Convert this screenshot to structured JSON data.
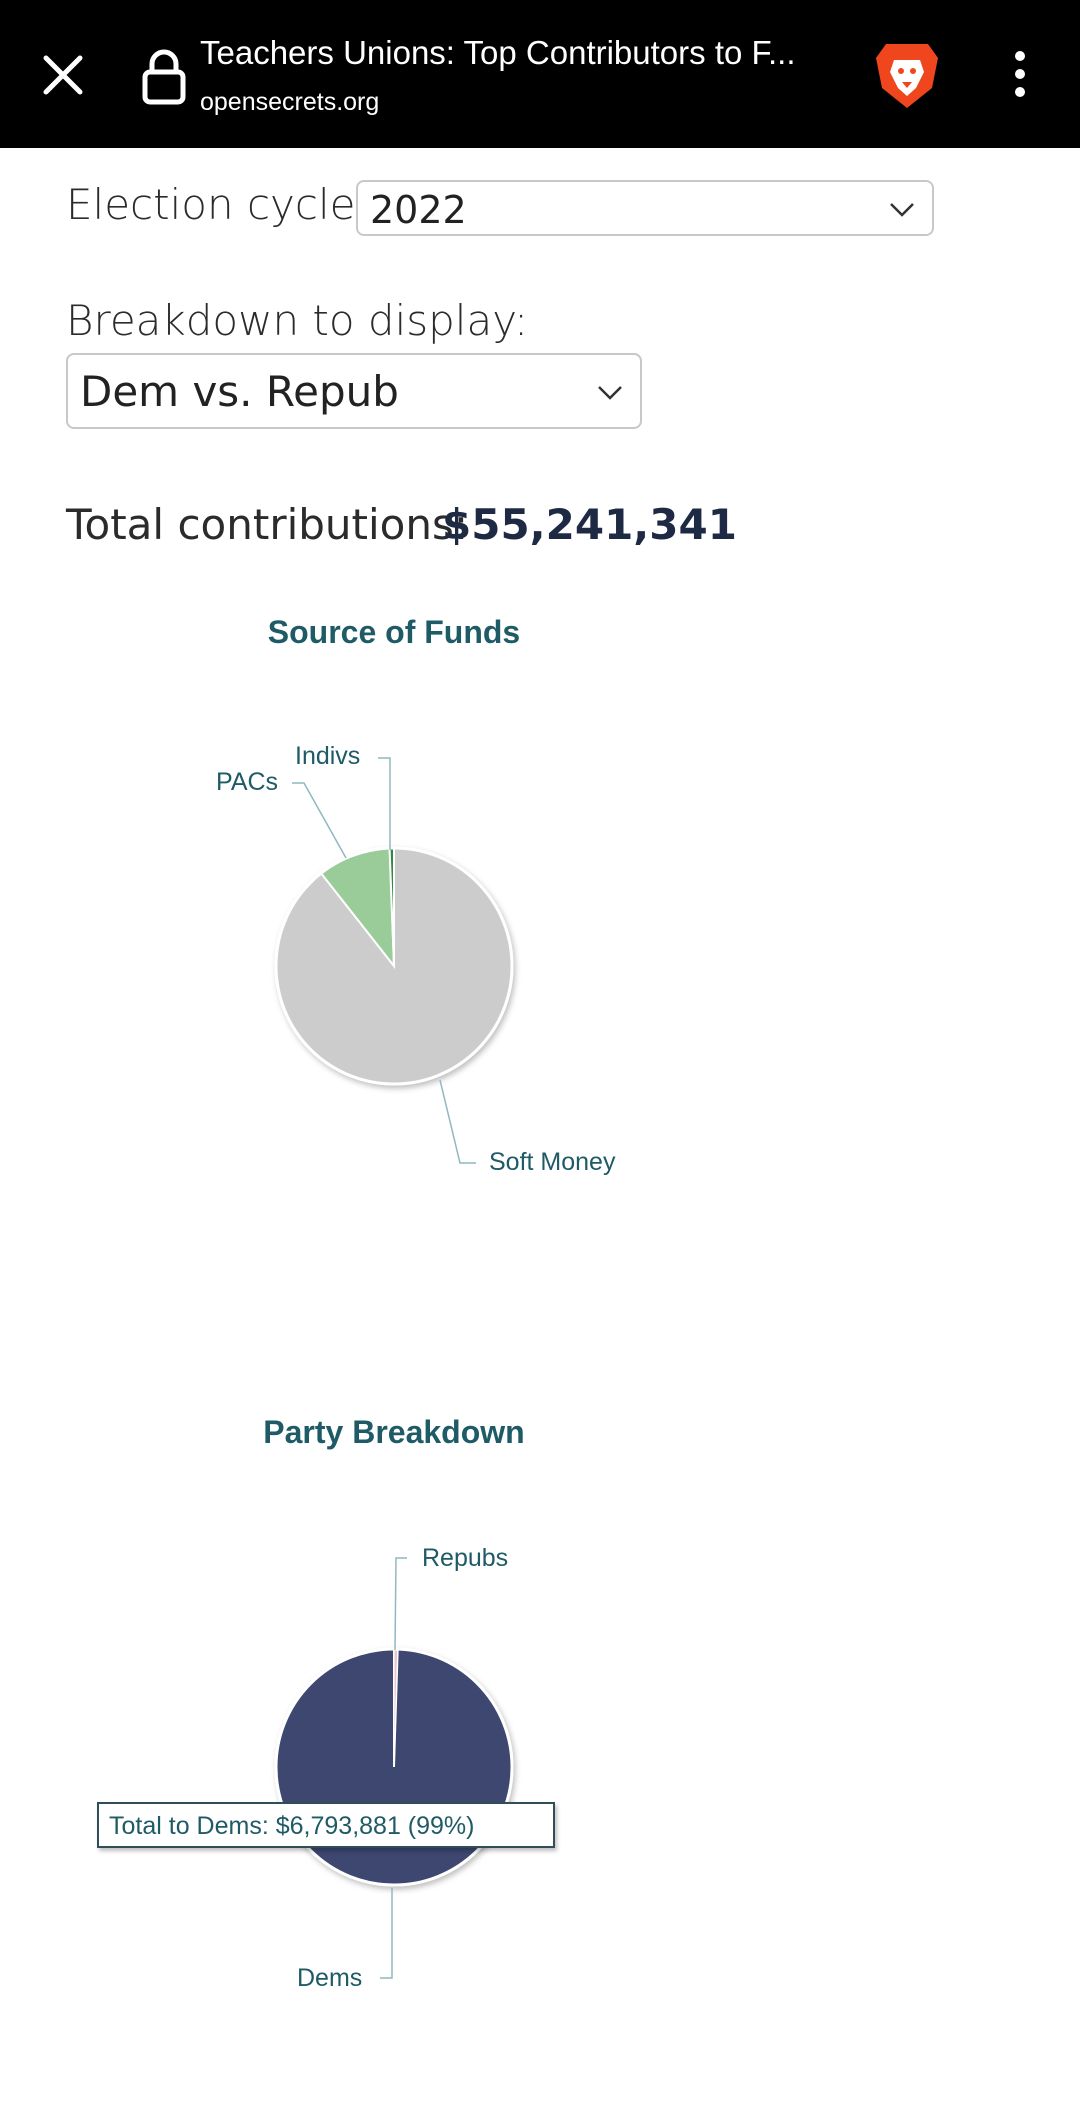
{
  "browser": {
    "title": "Teachers Unions: Top Contributors to F...",
    "domain": "opensecrets.org"
  },
  "form": {
    "cycle_label": "Election cycle:",
    "cycle_value": "2022",
    "breakdown_label": "Breakdown to display:",
    "breakdown_value": "Dem vs. Repub"
  },
  "totals": {
    "label": "Total contributions:",
    "value": "$55,241,341"
  },
  "colors": {
    "soft_money": "#cccccc",
    "pacs": "#99cc99",
    "indivs": "#2e8b3e",
    "dems": "#3d4670",
    "repubs": "#e8c9cf",
    "title": "#1f5b66"
  },
  "chart_data": [
    {
      "type": "pie",
      "title": "Source of Funds",
      "labels": [
        "Indivs",
        "PACs",
        "Soft Money"
      ],
      "values": [
        0.6,
        10.0,
        89.4
      ]
    },
    {
      "type": "pie",
      "title": "Party Breakdown",
      "labels": [
        "Dems",
        "Repubs"
      ],
      "values": [
        99.5,
        0.5
      ],
      "tooltip": "Total to Dems: $6,793,881 (99%)"
    }
  ]
}
